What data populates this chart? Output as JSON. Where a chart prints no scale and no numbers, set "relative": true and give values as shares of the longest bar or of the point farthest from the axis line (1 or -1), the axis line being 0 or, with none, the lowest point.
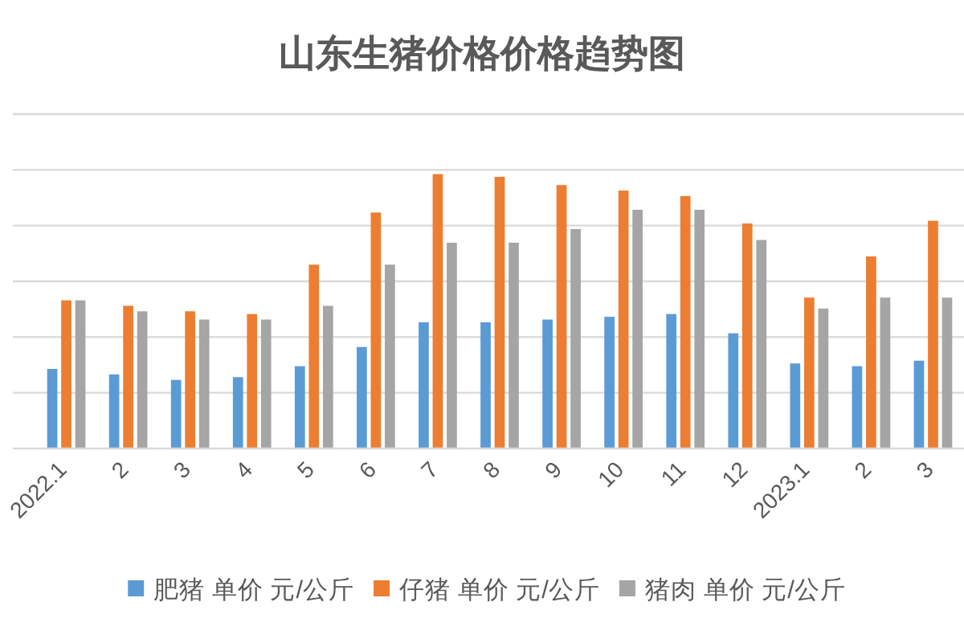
{
  "chart_data": {
    "type": "bar",
    "title": "山东生猪价格价格趋势图",
    "categories": [
      "2022.1",
      "2",
      "3",
      "4",
      "5",
      "6",
      "7",
      "8",
      "9",
      "10",
      "11",
      "12",
      "2023.1",
      "2",
      "3"
    ],
    "relative": true,
    "series": [
      {
        "name": "肥猪 单价 元/公斤",
        "color": "#5b9bd5",
        "values": [
          0.29,
          0.27,
          0.25,
          0.26,
          0.3,
          0.37,
          0.46,
          0.46,
          0.47,
          0.48,
          0.49,
          0.42,
          0.31,
          0.3,
          0.32
        ]
      },
      {
        "name": "仔猪 单价 元/公斤",
        "color": "#ed7d31",
        "values": [
          0.54,
          0.52,
          0.5,
          0.49,
          0.67,
          0.86,
          1,
          0.99,
          0.96,
          0.94,
          0.92,
          0.82,
          0.55,
          0.7,
          0.83
        ]
      },
      {
        "name": "猪肉 单价 元/公斤",
        "color": "#a5a5a5",
        "values": [
          0.54,
          0.5,
          0.47,
          0.47,
          0.52,
          0.67,
          0.75,
          0.75,
          0.8,
          0.87,
          0.87,
          0.76,
          0.51,
          0.55,
          0.55
        ]
      }
    ],
    "grid": "y",
    "legend": "bottom"
  }
}
